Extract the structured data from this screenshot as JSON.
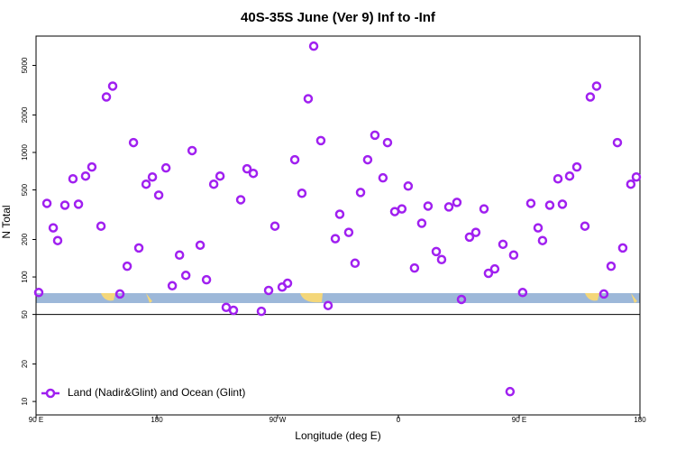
{
  "chart_data": {
    "type": "scatter",
    "title": "40S-35S June (Ver 9)   Inf to -Inf",
    "x_label": "Longitude (deg E)",
    "y_label": "N Total",
    "log_y": true,
    "legend": "bottom-left",
    "xlim": [
      90,
      540
    ],
    "xticks": [
      {
        "value": 90,
        "label": "90 E"
      },
      180,
      {
        "value": 270,
        "label": "90 W"
      },
      {
        "value": 360,
        "label": "0"
      },
      {
        "value": 450,
        "label": "90 E"
      },
      {
        "value": 540,
        "label": "180"
      }
    ],
    "ylim": [
      7.8,
      8600
    ],
    "yticks": [
      10,
      20,
      50,
      100,
      200,
      500,
      1000,
      2000,
      5000
    ],
    "series": [
      {
        "name": "Land (Nadir&Glint) and Ocean (Glint)",
        "color": "#a020f0",
        "x": [
          92.0,
          98.1,
          102.8,
          106.1,
          111.5,
          117.5,
          121.6,
          126.9,
          131.6,
          138.4,
          142.4,
          147.1,
          152.5,
          157.9,
          162.6,
          166.6,
          172.0,
          176.7,
          181.4,
          186.8,
          191.5,
          196.9,
          201.6,
          206.3,
          212.3,
          217.0,
          222.4,
          227.1,
          231.7,
          237.1,
          242.5,
          247.2,
          251.9,
          257.9,
          263.3,
          268.0,
          273.4,
          277.4,
          282.8,
          288.1,
          292.8,
          296.9,
          302.2,
          307.6,
          313.0,
          316.3,
          323.0,
          327.7,
          331.8,
          337.1,
          342.5,
          348.5,
          351.9,
          357.3,
          362.6,
          367.3,
          372.0,
          377.4,
          382.1,
          388.2,
          392.2,
          397.6,
          403.6,
          407.0,
          413.0,
          417.7,
          423.8,
          427.1,
          431.8,
          437.9,
          443.2,
          445.9,
          452.6,
          458.7,
          464.1,
          467.4,
          472.8,
          478.9,
          482.2,
          487.6,
          493.0,
          499.0,
          503.0,
          507.7,
          513.1,
          518.5,
          523.2,
          527.2,
          533.2,
          537.3
        ],
        "values": [
          75,
          390,
          248,
          196,
          377,
          614,
          384,
          646,
          764,
          256,
          2790,
          3410,
          73,
          122,
          1200,
          171,
          556,
          635,
          454,
          751,
          85,
          150,
          103,
          1035,
          180,
          95,
          556,
          646,
          57,
          54,
          417,
          739,
          679,
          53,
          78,
          256,
          83,
          89,
          874,
          470,
          2700,
          7140,
          1245,
          59,
          203,
          319,
          228,
          129,
          477,
          874,
          1376,
          625,
          1200,
          335,
          352,
          537,
          118,
          270,
          371,
          160,
          138,
          365,
          397,
          66,
          209,
          228,
          352,
          107,
          116,
          183,
          12,
          150,
          75,
          390,
          248,
          196,
          377,
          614,
          384,
          646,
          764,
          256,
          2790,
          3410,
          73,
          122,
          1200,
          171,
          556,
          635
        ]
      }
    ]
  }
}
